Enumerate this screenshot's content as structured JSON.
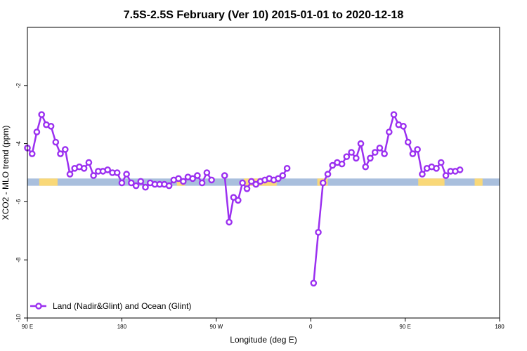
{
  "chart_data": {
    "type": "line",
    "title": "7.5S-2.5S February (Ver 10)   2015-01-01 to 2020-12-18",
    "xlabel": "Longitude (deg E)",
    "ylabel": "XCO2 - MLO trend (ppm)",
    "xlim": [
      90,
      450
    ],
    "ylim": [
      -10,
      0
    ],
    "x_ticks": [
      {
        "value": 90,
        "label": "90 E"
      },
      {
        "value": 162,
        "label": "180"
      },
      {
        "value": 234,
        "label": "90 W"
      },
      {
        "value": 306,
        "label": "0"
      },
      {
        "value": 378,
        "label": "90 E"
      },
      {
        "value": 450,
        "label": "180"
      }
    ],
    "y_ticks": [
      {
        "value": -10,
        "label": "-10"
      },
      {
        "value": -8,
        "label": "-8"
      },
      {
        "value": -6,
        "label": "-6"
      },
      {
        "value": -4,
        "label": "-4"
      },
      {
        "value": -2,
        "label": "-2"
      }
    ],
    "grid": false,
    "legend": {
      "position": "bottom-left",
      "entries": [
        {
          "label": "Land (Nadir&Glint) and Ocean (Glint)",
          "color": "#9b30f0"
        }
      ]
    },
    "land_ocean_strip": {
      "y_range": [
        -5.45,
        -5.2
      ],
      "ocean_color": "#a9bfdd",
      "land_color": "#f9d878",
      "land_segments": [
        [
          99,
          113
        ],
        [
          204,
          210
        ],
        [
          255,
          280
        ],
        [
          311,
          319
        ],
        [
          388,
          408
        ],
        [
          431,
          437
        ]
      ]
    },
    "series": [
      {
        "name": "Land (Nadir&Glint) and Ocean (Glint)",
        "color": "#9b30f0",
        "segments": [
          [
            [
              90,
              -4.15
            ],
            [
              93.6,
              -4.35
            ],
            [
              97.2,
              -3.6
            ],
            [
              100.8,
              -3.0
            ],
            [
              104.4,
              -3.35
            ],
            [
              108,
              -3.4
            ],
            [
              111.6,
              -3.95
            ],
            [
              115.2,
              -4.35
            ],
            [
              118.8,
              -4.2
            ],
            [
              122.4,
              -5.05
            ],
            [
              126,
              -4.85
            ],
            [
              129.6,
              -4.8
            ],
            [
              133.2,
              -4.85
            ],
            [
              136.8,
              -4.65
            ],
            [
              140.4,
              -5.1
            ],
            [
              144,
              -4.95
            ],
            [
              147.6,
              -4.95
            ],
            [
              151.2,
              -4.9
            ],
            [
              154.8,
              -5.0
            ],
            [
              158.4,
              -5.0
            ],
            [
              162,
              -5.35
            ],
            [
              165.6,
              -5.05
            ],
            [
              169.2,
              -5.35
            ],
            [
              172.8,
              -5.45
            ],
            [
              176.4,
              -5.3
            ],
            [
              180,
              -5.5
            ],
            [
              183.6,
              -5.35
            ],
            [
              187.2,
              -5.4
            ],
            [
              190.8,
              -5.4
            ],
            [
              194.4,
              -5.4
            ],
            [
              198,
              -5.45
            ],
            [
              201.6,
              -5.25
            ],
            [
              205.2,
              -5.2
            ],
            [
              208.8,
              -5.3
            ],
            [
              212.4,
              -5.15
            ],
            [
              216,
              -5.2
            ],
            [
              219.6,
              -5.1
            ],
            [
              223.2,
              -5.35
            ],
            [
              226.8,
              -5.0
            ],
            [
              230.4,
              -5.25
            ]
          ],
          [
            [
              240.4,
              -5.1
            ],
            [
              243.8,
              -6.7
            ],
            [
              247.2,
              -5.85
            ],
            [
              250.6,
              -5.95
            ],
            [
              254,
              -5.35
            ],
            [
              257.4,
              -5.55
            ],
            [
              260.8,
              -5.3
            ],
            [
              264.2,
              -5.4
            ],
            [
              267.6,
              -5.3
            ],
            [
              271,
              -5.25
            ],
            [
              274.4,
              -5.2
            ],
            [
              277.8,
              -5.25
            ],
            [
              281.2,
              -5.2
            ],
            [
              284.6,
              -5.1
            ],
            [
              288,
              -4.85
            ]
          ],
          [
            [
              308.2,
              -8.8
            ],
            [
              311.8,
              -7.05
            ],
            [
              315.4,
              -5.35
            ],
            [
              319,
              -5.05
            ],
            [
              322.6,
              -4.75
            ],
            [
              326.2,
              -4.65
            ],
            [
              329.8,
              -4.7
            ],
            [
              333.4,
              -4.45
            ],
            [
              337,
              -4.3
            ],
            [
              340.6,
              -4.5
            ],
            [
              344.2,
              -4.0
            ],
            [
              347.8,
              -4.8
            ],
            [
              351.4,
              -4.5
            ],
            [
              355,
              -4.3
            ],
            [
              358.6,
              -4.15
            ],
            [
              362.2,
              -4.35
            ],
            [
              365.8,
              -3.6
            ],
            [
              369.4,
              -3.0
            ],
            [
              373,
              -3.35
            ],
            [
              376.6,
              -3.4
            ],
            [
              380.2,
              -3.95
            ],
            [
              383.8,
              -4.35
            ],
            [
              387.4,
              -4.2
            ],
            [
              391,
              -5.05
            ],
            [
              394.6,
              -4.85
            ],
            [
              398.2,
              -4.8
            ],
            [
              401.8,
              -4.85
            ],
            [
              405.4,
              -4.65
            ],
            [
              409,
              -5.1
            ],
            [
              412.6,
              -4.95
            ],
            [
              416.2,
              -4.95
            ],
            [
              419.8,
              -4.9
            ]
          ]
        ]
      }
    ]
  }
}
